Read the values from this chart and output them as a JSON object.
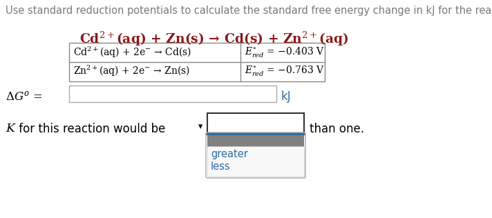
{
  "title": "Use standard reduction potentials to calculate the standard free energy change in kJ for the reaction:",
  "title_color": "#7a7a7a",
  "title_fontsize": 10.5,
  "reaction_main": "Cd$^{2+}$(aq) + Zn(s) → Cd(s) + Zn$^{2+}$(aq)",
  "reaction_color": "#8B1A1A",
  "table_row1_left": "Cd$^{2+}$(aq) + 2e$^{-}$ → Cd(s)",
  "table_row1_right": "$E^{\\circ}_{red}$ = −0.403 V",
  "table_row2_left": "Zn$^{2+}$(aq) + 2e$^{-}$ → Zn(s)",
  "table_row2_right": "$E^{\\circ}_{red}$ = −0.763 V",
  "delta_g_label": "$\\Delta G^{o}$ =",
  "delta_g_unit": "kJ",
  "k_text_italic": "$K$",
  "k_text_normal": " for this reaction would be",
  "than_one": "than one.",
  "dropdown_options": [
    "greater",
    "less"
  ],
  "dropdown_options_color": "#2e6da4",
  "bg_color": "#ffffff",
  "text_color": "#000000",
  "table_border_color": "#888888",
  "input_box_border_color": "#aaaaaa",
  "dropdown_box_border_color": "#333333",
  "dropdown_blue_line_color": "#2e6da4",
  "dropdown_grey_color": "#808080",
  "dropdown_bg_color": "#f8f8f8",
  "kJ_color": "#2e6da4"
}
